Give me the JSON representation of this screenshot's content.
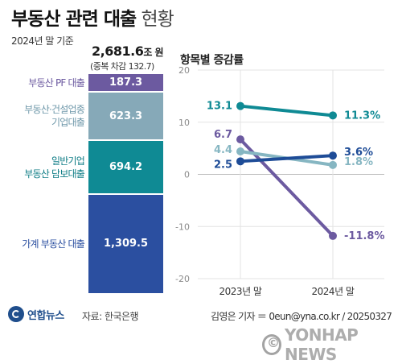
{
  "header": {
    "title_main": "부동산 관련 대출",
    "title_sub": "현황",
    "basis": "2024년 말 기준"
  },
  "total": {
    "value": "2,681.6",
    "unit": "조 원",
    "note": "(중복 차감 132.7)"
  },
  "chart_data": [
    {
      "type": "bar",
      "stacked": true,
      "title": "",
      "categories": [
        "부동산 PF 대출",
        "부동산·건설업종 기업대출",
        "일반기업 부동산 담보대출",
        "가계 부동산 대출"
      ],
      "series": [
        {
          "values": [
            187.3,
            623.3,
            694.2,
            1309.5
          ],
          "value_labels": [
            "187.3",
            "623.3",
            "694.2",
            "1,309.5"
          ],
          "colors": [
            "#6c5aa0",
            "#86a9b8",
            "#0f8a94",
            "#2b4fa0"
          ],
          "label_colors": [
            "#6c5aa0",
            "#6f98aa",
            "#0f7d86",
            "#2b4fa0"
          ]
        }
      ],
      "segment_labels": [
        [
          "부동산 PF 대출"
        ],
        [
          "부동산·건설업종",
          "기업대출"
        ],
        [
          "일반기업",
          "부동산 담보대출"
        ],
        [
          "가계 부동산 대출"
        ]
      ]
    },
    {
      "type": "line",
      "title": "항목별 증감률",
      "categories": [
        "2023년 말",
        "2024년 말"
      ],
      "ylim": [
        -20,
        20
      ],
      "yticks": [
        20,
        10,
        0,
        -10,
        -20
      ],
      "ytick_labels": [
        "20",
        "10",
        "0",
        "-10",
        "-20"
      ],
      "grid": true,
      "series": [
        {
          "values": [
            13.1,
            11.3
          ],
          "color": "#0f8a94",
          "labels": [
            "13.1",
            "11.3%"
          ]
        },
        {
          "values": [
            6.7,
            -11.8
          ],
          "color": "#6c5aa0",
          "labels": [
            "6.7",
            "-11.8%"
          ]
        },
        {
          "values": [
            4.4,
            1.8
          ],
          "color": "#86b6c2",
          "labels": [
            "4.4",
            "1.8%"
          ]
        },
        {
          "values": [
            2.5,
            3.6
          ],
          "color": "#1e4c97",
          "labels": [
            "2.5",
            "3.6%"
          ]
        }
      ]
    }
  ],
  "footer": {
    "logo": "연합뉴스",
    "source": "자료: 한국은행",
    "byline": "김영은 기자 ＝ 0eun@yna.co.kr / 20250327",
    "watermark": "YONHAP NEWS"
  }
}
